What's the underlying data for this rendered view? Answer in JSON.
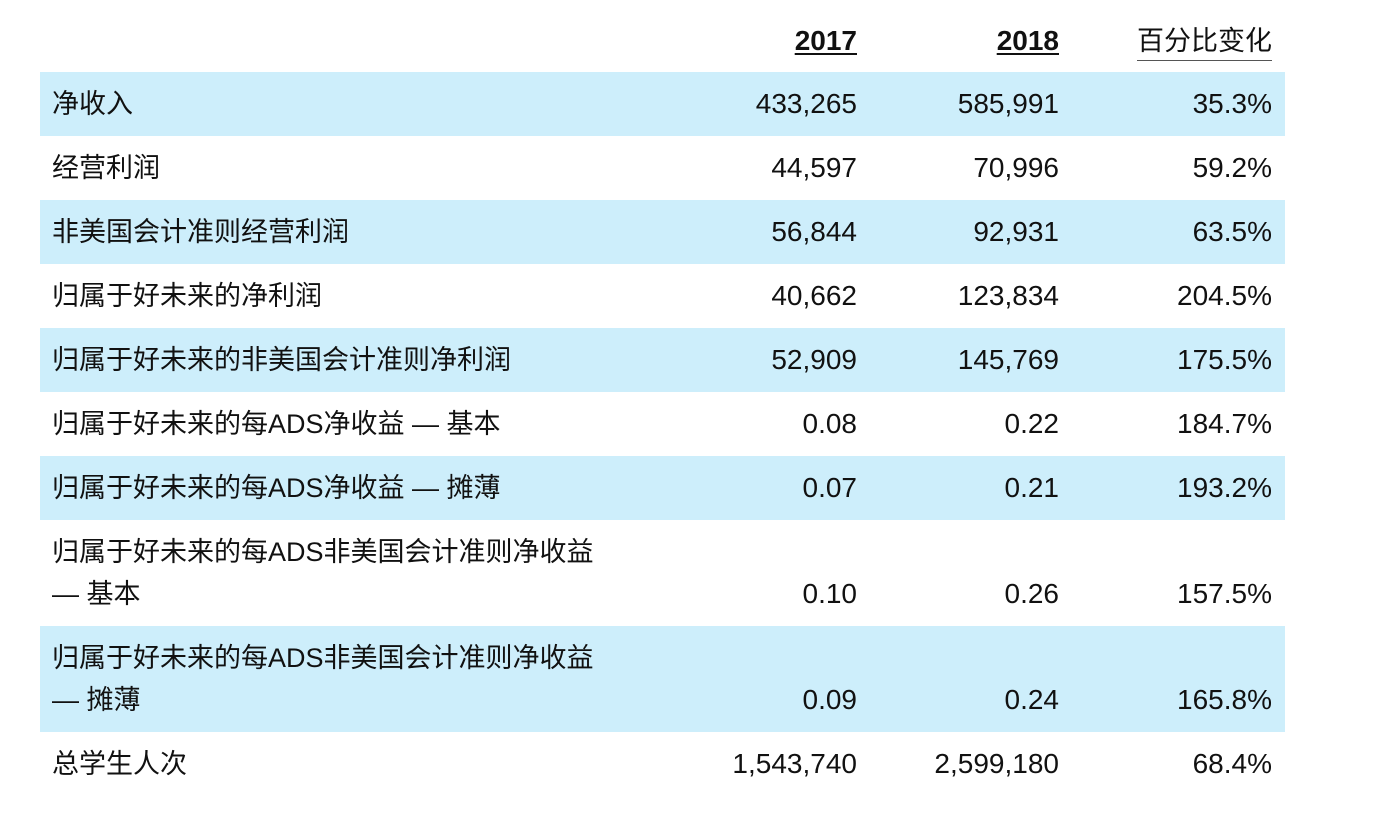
{
  "chart_data": {
    "type": "table",
    "columns": [
      "",
      "2017",
      "2018",
      "百分比变化"
    ],
    "rows": [
      {
        "label": "净收入",
        "v2017": "433,265",
        "v2018": "585,991",
        "change": "35.3%"
      },
      {
        "label": "经营利润",
        "v2017": "44,597",
        "v2018": "70,996",
        "change": "59.2%"
      },
      {
        "label": "非美国会计准则经营利润",
        "v2017": "56,844",
        "v2018": "92,931",
        "change": "63.5%"
      },
      {
        "label": "归属于好未来的净利润",
        "v2017": "40,662",
        "v2018": "123,834",
        "change": "204.5%"
      },
      {
        "label": "归属于好未来的非美国会计准则净利润",
        "v2017": "52,909",
        "v2018": "145,769",
        "change": "175.5%"
      },
      {
        "label": "归属于好未来的每ADS净收益 — 基本",
        "v2017": "0.08",
        "v2018": "0.22",
        "change": "184.7%"
      },
      {
        "label": "归属于好未来的每ADS净收益 — 摊薄",
        "v2017": "0.07",
        "v2018": "0.21",
        "change": "193.2%"
      },
      {
        "label": "归属于好未来的每ADS非美国会计准则净收益 — 基本",
        "v2017": "0.10",
        "v2018": "0.26",
        "change": "157.5%"
      },
      {
        "label": "归属于好未来的每ADS非美国会计准则净收益 — 摊薄",
        "v2017": "0.09",
        "v2018": "0.24",
        "change": "165.8%"
      },
      {
        "label": "总学生人次",
        "v2017": "1,543,740",
        "v2018": "2,599,180",
        "change": "68.4%"
      }
    ]
  },
  "style": {
    "shade_color": "#cdeefb",
    "text_color": "#111111"
  }
}
